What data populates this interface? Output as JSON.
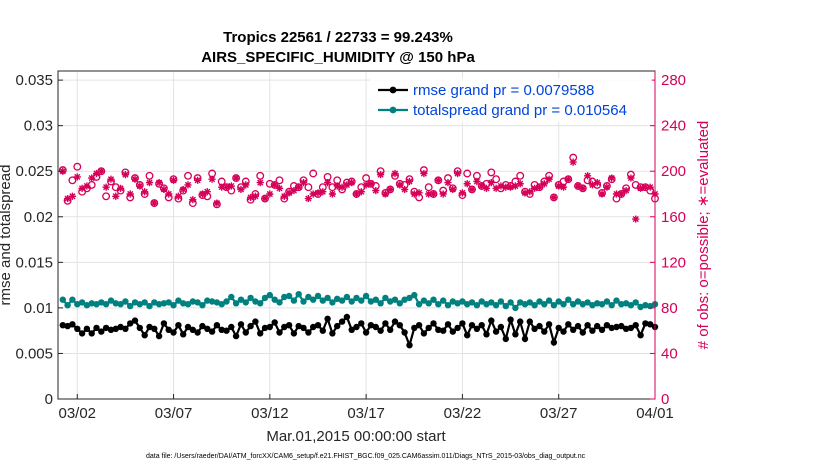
{
  "chart_data": {
    "type": "line",
    "title": "Tropics 22561 / 22733 = 99.243%",
    "subtitle": "AIRS_SPECIFIC_HUMIDITY @ 150 hPa",
    "xlabel": "Mar.01,2015 00:00:00 start",
    "ylabel_left": "rmse and totalspread",
    "ylabel_right": "# of obs: o=possible; ∗=evaluated",
    "footnote": "data file: /Users/raeder/DAI/ATM_forcXX/CAM6_setup/f.e21.FHIST_BGC.f09_025.CAM6assim.011/Diags_NTrS_2015-03/obs_diag_output.nc",
    "xlim": [
      0,
      31
    ],
    "ylim_left": [
      0,
      0.036
    ],
    "ylim_right": [
      0,
      288
    ],
    "x_ticks": [
      1,
      6,
      11,
      16,
      21,
      26,
      31
    ],
    "x_tick_labels": [
      "03/02",
      "03/07",
      "03/12",
      "03/17",
      "03/22",
      "03/27",
      "04/01"
    ],
    "y_ticks_left": [
      0,
      0.005,
      0.01,
      0.015,
      0.02,
      0.025,
      0.03,
      0.035
    ],
    "y_tick_labels_left": [
      "0",
      "0.005",
      "0.01",
      "0.015",
      "0.02",
      "0.025",
      "0.03",
      "0.035"
    ],
    "y_ticks_right": [
      0,
      40,
      80,
      120,
      160,
      200,
      240,
      280
    ],
    "y_tick_labels_right": [
      "0",
      "40",
      "80",
      "120",
      "160",
      "200",
      "240",
      "280"
    ],
    "legend_position": "top-right",
    "x": [
      0.25,
      0.5,
      0.75,
      1,
      1.25,
      1.5,
      1.75,
      2,
      2.25,
      2.5,
      2.75,
      3,
      3.25,
      3.5,
      3.75,
      4,
      4.25,
      4.5,
      4.75,
      5,
      5.25,
      5.5,
      5.75,
      6,
      6.25,
      6.5,
      6.75,
      7,
      7.25,
      7.5,
      7.75,
      8,
      8.25,
      8.5,
      8.75,
      9,
      9.25,
      9.5,
      9.75,
      10,
      10.25,
      10.5,
      10.75,
      11,
      11.25,
      11.5,
      11.75,
      12,
      12.25,
      12.5,
      12.75,
      13,
      13.25,
      13.5,
      13.75,
      14,
      14.25,
      14.5,
      14.75,
      15,
      15.25,
      15.5,
      15.75,
      16,
      16.25,
      16.5,
      16.75,
      17,
      17.25,
      17.5,
      17.75,
      18,
      18.25,
      18.5,
      18.75,
      19,
      19.25,
      19.5,
      19.75,
      20,
      20.25,
      20.5,
      20.75,
      21,
      21.25,
      21.5,
      21.75,
      22,
      22.25,
      22.5,
      22.75,
      23,
      23.25,
      23.5,
      23.75,
      24,
      24.25,
      24.5,
      24.75,
      25,
      25.25,
      25.5,
      25.75,
      26,
      26.25,
      26.5,
      26.75,
      27,
      27.25,
      27.5,
      27.75,
      28,
      28.25,
      28.5,
      28.75,
      29,
      29.25,
      29.5,
      29.75,
      30,
      30.25,
      30.5,
      30.75,
      31
    ],
    "series": [
      {
        "name": "rmse grand pr = 0.0079588",
        "color": "#000000",
        "marker": "dot",
        "axis": "left",
        "values": [
          0.0081,
          0.008,
          0.0082,
          0.0077,
          0.0072,
          0.0077,
          0.0072,
          0.0078,
          0.0074,
          0.0078,
          0.0076,
          0.0077,
          0.0079,
          0.0077,
          0.0083,
          0.0086,
          0.0078,
          0.007,
          0.0079,
          0.0077,
          0.0069,
          0.0083,
          0.0076,
          0.0073,
          0.0081,
          0.0071,
          0.0079,
          0.0076,
          0.0073,
          0.008,
          0.0077,
          0.0074,
          0.0081,
          0.0076,
          0.0075,
          0.0079,
          0.0069,
          0.0082,
          0.0073,
          0.008,
          0.0085,
          0.0072,
          0.0078,
          0.0079,
          0.0084,
          0.0073,
          0.0079,
          0.0081,
          0.0072,
          0.008,
          0.0078,
          0.0073,
          0.0079,
          0.0081,
          0.0075,
          0.0088,
          0.0072,
          0.008,
          0.0085,
          0.009,
          0.0076,
          0.0079,
          0.0083,
          0.0073,
          0.0081,
          0.0079,
          0.0075,
          0.0083,
          0.0076,
          0.0085,
          0.0081,
          0.0073,
          0.0059,
          0.0078,
          0.0081,
          0.0072,
          0.0078,
          0.0083,
          0.0076,
          0.0075,
          0.0082,
          0.0074,
          0.0078,
          0.0083,
          0.007,
          0.0081,
          0.0077,
          0.0081,
          0.0071,
          0.0086,
          0.0074,
          0.0079,
          0.0066,
          0.0087,
          0.0071,
          0.0085,
          0.0066,
          0.0085,
          0.0077,
          0.008,
          0.0074,
          0.0082,
          0.0062,
          0.0078,
          0.0074,
          0.0082,
          0.0076,
          0.008,
          0.0073,
          0.0081,
          0.0075,
          0.008,
          0.0076,
          0.0081,
          0.0078,
          0.0079,
          0.008,
          0.0077,
          0.0078,
          0.0081,
          0.007,
          0.0083,
          0.0082,
          0.0079
        ]
      },
      {
        "name": "totalspread grand pr = 0.010564",
        "color": "#00807f",
        "marker": "dot",
        "axis": "left",
        "values": [
          0.0109,
          0.0103,
          0.0109,
          0.0104,
          0.0106,
          0.0103,
          0.0105,
          0.0104,
          0.0106,
          0.0104,
          0.0108,
          0.0105,
          0.0104,
          0.0107,
          0.0102,
          0.0106,
          0.0104,
          0.0106,
          0.0102,
          0.0106,
          0.0104,
          0.0105,
          0.0106,
          0.0103,
          0.0108,
          0.0105,
          0.0104,
          0.0107,
          0.0106,
          0.0103,
          0.0108,
          0.0107,
          0.0106,
          0.0104,
          0.0107,
          0.0112,
          0.0105,
          0.0109,
          0.0106,
          0.0111,
          0.0107,
          0.0105,
          0.0111,
          0.0114,
          0.0109,
          0.0106,
          0.0112,
          0.0113,
          0.0108,
          0.0115,
          0.0107,
          0.0112,
          0.0109,
          0.0113,
          0.0108,
          0.0111,
          0.0106,
          0.011,
          0.0108,
          0.0112,
          0.0107,
          0.0111,
          0.0108,
          0.0113,
          0.0107,
          0.0109,
          0.0105,
          0.0111,
          0.0107,
          0.0109,
          0.0105,
          0.0109,
          0.0111,
          0.0114,
          0.0104,
          0.0108,
          0.0105,
          0.0109,
          0.0104,
          0.0108,
          0.0103,
          0.0107,
          0.0105,
          0.0107,
          0.0104,
          0.0106,
          0.0103,
          0.0107,
          0.0104,
          0.0106,
          0.0103,
          0.0107,
          0.0102,
          0.0106,
          0.01,
          0.0106,
          0.0104,
          0.0106,
          0.0103,
          0.0107,
          0.0104,
          0.0108,
          0.0103,
          0.0107,
          0.0104,
          0.0109,
          0.0104,
          0.0107,
          0.0104,
          0.0106,
          0.0103,
          0.0105,
          0.0104,
          0.0107,
          0.0103,
          0.0108,
          0.0104,
          0.0105,
          0.0103,
          0.0106,
          0.0101,
          0.0103,
          0.0102,
          0.0104
        ]
      },
      {
        "name": "possible",
        "color": "#d60058",
        "marker": "circle",
        "axis": "right",
        "values": [
          201,
          174,
          192,
          204,
          182,
          185,
          188,
          195,
          200,
          178,
          191,
          186,
          183,
          199,
          177,
          194,
          188,
          180,
          196,
          172,
          189,
          185,
          177,
          193,
          176,
          183,
          196,
          172,
          194,
          179,
          178,
          198,
          171,
          191,
          186,
          183,
          194,
          186,
          191,
          175,
          180,
          196,
          176,
          189,
          188,
          192,
          176,
          182,
          187,
          186,
          192,
          186,
          198,
          180,
          186,
          195,
          186,
          192,
          184,
          190,
          191,
          180,
          186,
          194,
          189,
          187,
          200,
          181,
          184,
          196,
          189,
          188,
          193,
          182,
          177,
          201,
          186,
          180,
          192,
          183,
          194,
          185,
          200,
          179,
          198,
          184,
          196,
          187,
          189,
          199,
          193,
          185,
          188,
          187,
          191,
          196,
          182,
          180,
          188,
          186,
          191,
          196,
          177,
          188,
          191,
          193,
          212,
          187,
          185,
          192,
          191,
          188,
          181,
          187,
          193,
          176,
          180,
          185,
          197,
          188,
          186,
          186,
          183,
          176
        ]
      },
      {
        "name": "evaluated",
        "color": "#d60058",
        "marker": "star",
        "axis": "right",
        "values": [
          200,
          176,
          178,
          195,
          185,
          187,
          194,
          198,
          200,
          186,
          193,
          178,
          185,
          197,
          180,
          193,
          187,
          182,
          190,
          172,
          190,
          184,
          180,
          192,
          178,
          184,
          188,
          175,
          192,
          180,
          182,
          193,
          172,
          186,
          186,
          187,
          194,
          184,
          188,
          177,
          178,
          190,
          176,
          180,
          188,
          185,
          178,
          181,
          183,
          186,
          190,
          176,
          180,
          181,
          182,
          190,
          180,
          187,
          186,
          188,
          190,
          180,
          182,
          188,
          189,
          183,
          197,
          180,
          184,
          198,
          188,
          184,
          191,
          180,
          181,
          198,
          180,
          180,
          192,
          180,
          190,
          184,
          198,
          181,
          189,
          184,
          191,
          187,
          185,
          190,
          185,
          187,
          186,
          186,
          187,
          189,
          181,
          182,
          185,
          186,
          189,
          193,
          177,
          187,
          186,
          193,
          208,
          187,
          185,
          196,
          188,
          190,
          180,
          186,
          194,
          180,
          180,
          183,
          194,
          158,
          185,
          186,
          186,
          180
        ]
      }
    ]
  }
}
